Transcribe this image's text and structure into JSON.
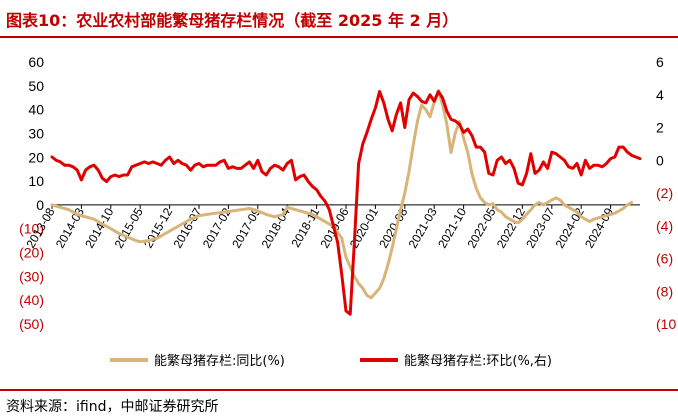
{
  "title": "图表10：农业农村部能繁母猪存栏情况（截至 2025 年 2 月）",
  "source": "资料来源：ifind，中邮证券研究所",
  "colors": {
    "accent": "#c00000",
    "negative": "#c00000",
    "yoy": "#d9b479",
    "mom": "#e00000"
  },
  "chart_data": {
    "type": "line",
    "dual_axis": true,
    "y_left": {
      "min": -50,
      "max": 60,
      "ticks": [
        "60",
        "50",
        "40",
        "30",
        "20",
        "10",
        "0",
        "(10)",
        "(20)",
        "(30)",
        "(40)",
        "(50)"
      ]
    },
    "y_right": {
      "min": -10,
      "max": 6,
      "ticks": [
        "6",
        "4",
        "2",
        "0",
        "(2)",
        "(4)",
        "(6)",
        "(8)",
        "(10"
      ]
    },
    "x_ticks": [
      "2013-08",
      "2014-03",
      "2014-10",
      "2015-05",
      "2015-12",
      "2016-07",
      "2017-02",
      "2017-09",
      "2018-04",
      "2018-11",
      "2019-06",
      "2020-01",
      "2020-08",
      "2021-03",
      "2021-10",
      "2022-05",
      "2022-12",
      "2023-07",
      "2024-02",
      "2024-09"
    ],
    "legend": "bottom",
    "series": [
      {
        "name": "能繁母猪存栏:同比(%)",
        "axis": "left",
        "color": "#d9b479",
        "points": [
          [
            0,
            0
          ],
          [
            2,
            -1
          ],
          [
            4,
            -2
          ],
          [
            6,
            -4
          ],
          [
            8,
            -5
          ],
          [
            10,
            -6
          ],
          [
            12,
            -8
          ],
          [
            14,
            -10
          ],
          [
            16,
            -12
          ],
          [
            18,
            -13.5
          ],
          [
            20,
            -15
          ],
          [
            21,
            -15.5
          ],
          [
            23,
            -15
          ],
          [
            25,
            -14
          ],
          [
            27,
            -12
          ],
          [
            29,
            -10
          ],
          [
            31,
            -8
          ],
          [
            33,
            -6
          ],
          [
            35,
            -4.5
          ],
          [
            37,
            -4
          ],
          [
            39,
            -3.5
          ],
          [
            41,
            -3
          ],
          [
            43,
            -2.5
          ],
          [
            45,
            -2
          ],
          [
            47,
            -1.5
          ],
          [
            49,
            -2.5
          ],
          [
            51,
            -4
          ],
          [
            53,
            -5
          ],
          [
            55,
            -4
          ],
          [
            56,
            -1
          ],
          [
            58,
            -2
          ],
          [
            60,
            -3
          ],
          [
            62,
            -4
          ],
          [
            63,
            -5
          ],
          [
            65,
            -7
          ],
          [
            67,
            -9
          ],
          [
            69,
            -14
          ],
          [
            70,
            -22
          ],
          [
            71,
            -26
          ],
          [
            72,
            -30
          ],
          [
            73,
            -33
          ],
          [
            74,
            -35
          ],
          [
            75,
            -38
          ],
          [
            76,
            -39
          ],
          [
            77,
            -37
          ],
          [
            78,
            -35
          ],
          [
            79,
            -31
          ],
          [
            80,
            -25
          ],
          [
            81,
            -18
          ],
          [
            82,
            -10
          ],
          [
            83,
            -2
          ],
          [
            84,
            5
          ],
          [
            85,
            14
          ],
          [
            86,
            25
          ],
          [
            87,
            35
          ],
          [
            88,
            42
          ],
          [
            89,
            40
          ],
          [
            90,
            37
          ],
          [
            91,
            43
          ],
          [
            92,
            48
          ],
          [
            93,
            42
          ],
          [
            94,
            34
          ],
          [
            95,
            22
          ],
          [
            96,
            30
          ],
          [
            97,
            35
          ],
          [
            98,
            28
          ],
          [
            99,
            22
          ],
          [
            100,
            13
          ],
          [
            101,
            7
          ],
          [
            102,
            3
          ],
          [
            103,
            1
          ],
          [
            104,
            0
          ],
          [
            105,
            0.5
          ],
          [
            106,
            -2
          ],
          [
            107,
            -3
          ],
          [
            108,
            -5
          ],
          [
            109,
            -6
          ],
          [
            110,
            -7
          ],
          [
            111,
            -7.5
          ],
          [
            112,
            -6
          ],
          [
            113,
            -4
          ],
          [
            114,
            -2
          ],
          [
            115,
            0
          ],
          [
            116,
            1
          ],
          [
            117,
            0
          ],
          [
            118,
            1
          ],
          [
            119,
            2
          ],
          [
            120,
            3
          ],
          [
            121,
            2
          ],
          [
            122,
            0
          ],
          [
            123,
            -1
          ],
          [
            124,
            -2
          ],
          [
            125,
            -3
          ],
          [
            126,
            -5
          ],
          [
            127,
            -6
          ],
          [
            128,
            -7
          ],
          [
            129,
            -6
          ],
          [
            130,
            -5.5
          ],
          [
            131,
            -5
          ],
          [
            132,
            -4.5
          ],
          [
            133,
            -4
          ],
          [
            134,
            -3.5
          ],
          [
            135,
            -2.5
          ],
          [
            136,
            -1.5
          ],
          [
            137,
            0
          ],
          [
            138,
            1
          ]
        ]
      },
      {
        "name": "能繁母猪存栏:环比(%,右)",
        "axis": "right",
        "color": "#e00000",
        "points": [
          [
            0,
            0.2
          ],
          [
            1,
            0
          ],
          [
            2,
            -0.1
          ],
          [
            3,
            -0.3
          ],
          [
            4,
            -0.3
          ],
          [
            5,
            -0.4
          ],
          [
            6,
            -0.6
          ],
          [
            7,
            -1.2
          ],
          [
            8,
            -0.6
          ],
          [
            9,
            -0.4
          ],
          [
            10,
            -0.3
          ],
          [
            11,
            -0.6
          ],
          [
            12,
            -1.1
          ],
          [
            13,
            -1.3
          ],
          [
            14,
            -1.0
          ],
          [
            15,
            -0.9
          ],
          [
            16,
            -1.0
          ],
          [
            17,
            -0.9
          ],
          [
            18,
            -0.9
          ],
          [
            19,
            -0.4
          ],
          [
            20,
            -0.3
          ],
          [
            21,
            -0.2
          ],
          [
            22,
            -0.1
          ],
          [
            23,
            -0.2
          ],
          [
            24,
            -0.1
          ],
          [
            25,
            -0.2
          ],
          [
            26,
            -0.3
          ],
          [
            27,
            0
          ],
          [
            28,
            0.2
          ],
          [
            29,
            -0.2
          ],
          [
            30,
            0
          ],
          [
            31,
            -0.2
          ],
          [
            32,
            -0.3
          ],
          [
            33,
            -0.6
          ],
          [
            34,
            -0.3
          ],
          [
            35,
            -0.2
          ],
          [
            36,
            -0.4
          ],
          [
            37,
            -0.3
          ],
          [
            38,
            -0.3
          ],
          [
            39,
            -0.3
          ],
          [
            40,
            -0.1
          ],
          [
            41,
            0
          ],
          [
            42,
            -0.5
          ],
          [
            43,
            -0.4
          ],
          [
            44,
            -0.5
          ],
          [
            45,
            -0.5
          ],
          [
            46,
            -0.3
          ],
          [
            47,
            -0.1
          ],
          [
            48,
            -0.5
          ],
          [
            49,
            0
          ],
          [
            50,
            -0.7
          ],
          [
            51,
            -0.9
          ],
          [
            52,
            -0.5
          ],
          [
            53,
            -0.3
          ],
          [
            54,
            -0.4
          ],
          [
            55,
            -0.6
          ],
          [
            56,
            -0.2
          ],
          [
            57,
            0
          ],
          [
            58,
            -1.2
          ],
          [
            59,
            -1.0
          ],
          [
            60,
            -0.9
          ],
          [
            61,
            -1.3
          ],
          [
            62,
            -1.6
          ],
          [
            63,
            -1.8
          ],
          [
            64,
            -2.2
          ],
          [
            65,
            -2.5
          ],
          [
            66,
            -3.0
          ],
          [
            67,
            -4.0
          ],
          [
            68,
            -5.0
          ],
          [
            69,
            -7.0
          ],
          [
            70,
            -9.2
          ],
          [
            71,
            -9.4
          ],
          [
            72,
            -5.0
          ],
          [
            73,
            -0.2
          ],
          [
            74,
            1.0
          ],
          [
            75,
            1.7
          ],
          [
            76,
            2.5
          ],
          [
            77,
            3.2
          ],
          [
            78,
            4.2
          ],
          [
            79,
            3.5
          ],
          [
            80,
            2.5
          ],
          [
            81,
            1.8
          ],
          [
            82,
            2.8
          ],
          [
            83,
            3.5
          ],
          [
            84,
            2.0
          ],
          [
            85,
            3.7
          ],
          [
            86,
            4.1
          ],
          [
            87,
            3.9
          ],
          [
            88,
            3.6
          ],
          [
            89,
            3.5
          ],
          [
            90,
            4.0
          ],
          [
            91,
            3.6
          ],
          [
            92,
            4.2
          ],
          [
            93,
            3.8
          ],
          [
            94,
            3.0
          ],
          [
            95,
            2.5
          ],
          [
            96,
            2.4
          ],
          [
            97,
            2.2
          ],
          [
            98,
            1.7
          ],
          [
            99,
            1.9
          ],
          [
            100,
            1.5
          ],
          [
            101,
            0.8
          ],
          [
            102,
            0.8
          ],
          [
            103,
            0.5
          ],
          [
            104,
            -0.8
          ],
          [
            105,
            -0.9
          ],
          [
            106,
            0
          ],
          [
            107,
            0.2
          ],
          [
            108,
            -0.2
          ],
          [
            109,
            0
          ],
          [
            110,
            -0.5
          ],
          [
            111,
            -1.4
          ],
          [
            112,
            -1.5
          ],
          [
            113,
            -0.8
          ],
          [
            114,
            0.4
          ],
          [
            115,
            -0.8
          ],
          [
            116,
            -0.6
          ],
          [
            117,
            -0.1
          ],
          [
            118,
            -0.5
          ],
          [
            119,
            0.5
          ],
          [
            120,
            0.4
          ],
          [
            121,
            0.2
          ],
          [
            122,
            0
          ],
          [
            123,
            -0.4
          ],
          [
            124,
            -0.5
          ],
          [
            125,
            -0.2
          ],
          [
            126,
            -0.9
          ],
          [
            127,
            0
          ],
          [
            128,
            -0.5
          ],
          [
            129,
            -0.3
          ],
          [
            130,
            -0.3
          ],
          [
            131,
            -0.4
          ],
          [
            132,
            -0.2
          ],
          [
            133,
            0.1
          ],
          [
            134,
            0.2
          ],
          [
            135,
            0.8
          ],
          [
            136,
            0.8
          ],
          [
            137,
            0.5
          ],
          [
            138,
            0.3
          ],
          [
            139,
            0.2
          ],
          [
            140,
            0.1
          ]
        ]
      }
    ]
  }
}
